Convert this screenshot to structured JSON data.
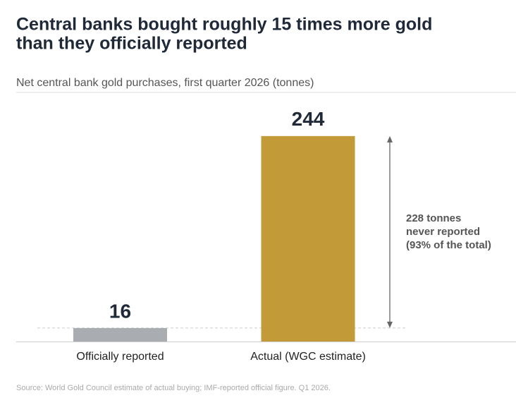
{
  "chart_data": {
    "type": "bar",
    "title": [
      "Central banks bought roughly 15 times more gold",
      "than they officially reported"
    ],
    "subtitle": "Net central bank gold purchases, first quarter 2026  (tonnes)",
    "categories": [
      "Officially reported",
      "Actual (WGC estimate)"
    ],
    "values": [
      16,
      244
    ],
    "colors": [
      "#a9adb1",
      "#c39a38"
    ],
    "ylim": [
      0,
      300
    ],
    "annotation": [
      "228 tonnes",
      "never reported",
      "(93% of the total)"
    ],
    "source": "Source: World Gold Council estimate of actual buying; IMF-reported official figure.  Q1 2026."
  }
}
